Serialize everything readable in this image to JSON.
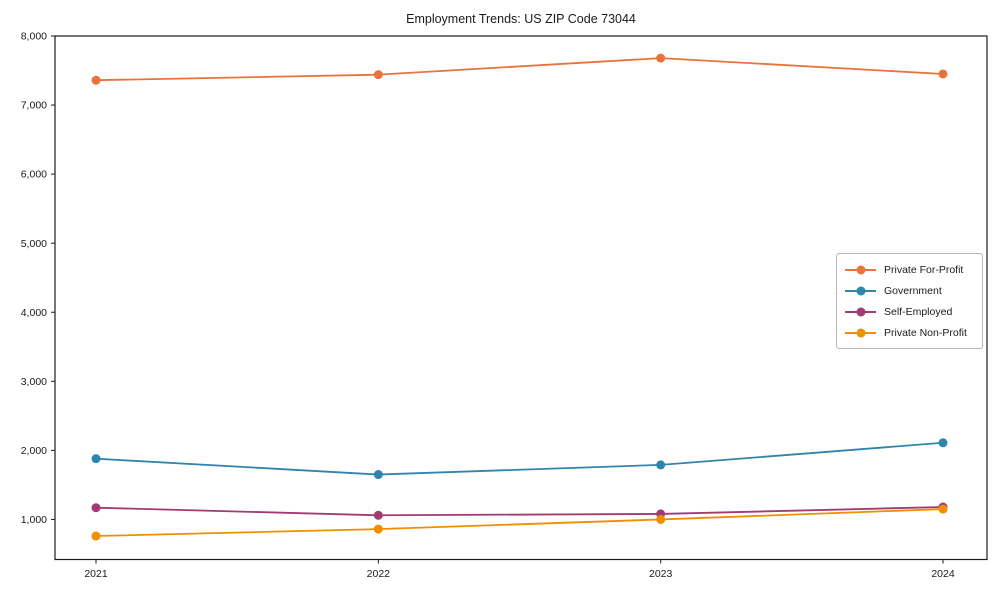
{
  "chart_data": {
    "type": "line",
    "title": "Employment Trends: US ZIP Code 73044",
    "categories": [
      "2021",
      "2022",
      "2023",
      "2024"
    ],
    "series": [
      {
        "name": "Private For-Profit",
        "color": "#E8743B",
        "values": [
          7360,
          7440,
          7680,
          7450
        ]
      },
      {
        "name": "Government",
        "color": "#2E86AB",
        "values": [
          1880,
          1650,
          1790,
          2110
        ]
      },
      {
        "name": "Self-Employed",
        "color": "#A23B72",
        "values": [
          1170,
          1060,
          1080,
          1180
        ]
      },
      {
        "name": "Private Non-Profit",
        "color": "#F18F01",
        "values": [
          760,
          860,
          1000,
          1150
        ]
      }
    ],
    "xlabel": "",
    "ylabel": "",
    "ylim": [
      420,
      8000
    ],
    "yticks": [
      1000,
      2000,
      3000,
      4000,
      5000,
      6000,
      7000,
      8000
    ],
    "ytick_labels": [
      "1,000",
      "2,000",
      "3,000",
      "4,000",
      "5,000",
      "6,000",
      "7,000",
      "8,000"
    ],
    "grid": false,
    "legend_position": "middle-right",
    "axis_color": "#1a1a1a"
  }
}
